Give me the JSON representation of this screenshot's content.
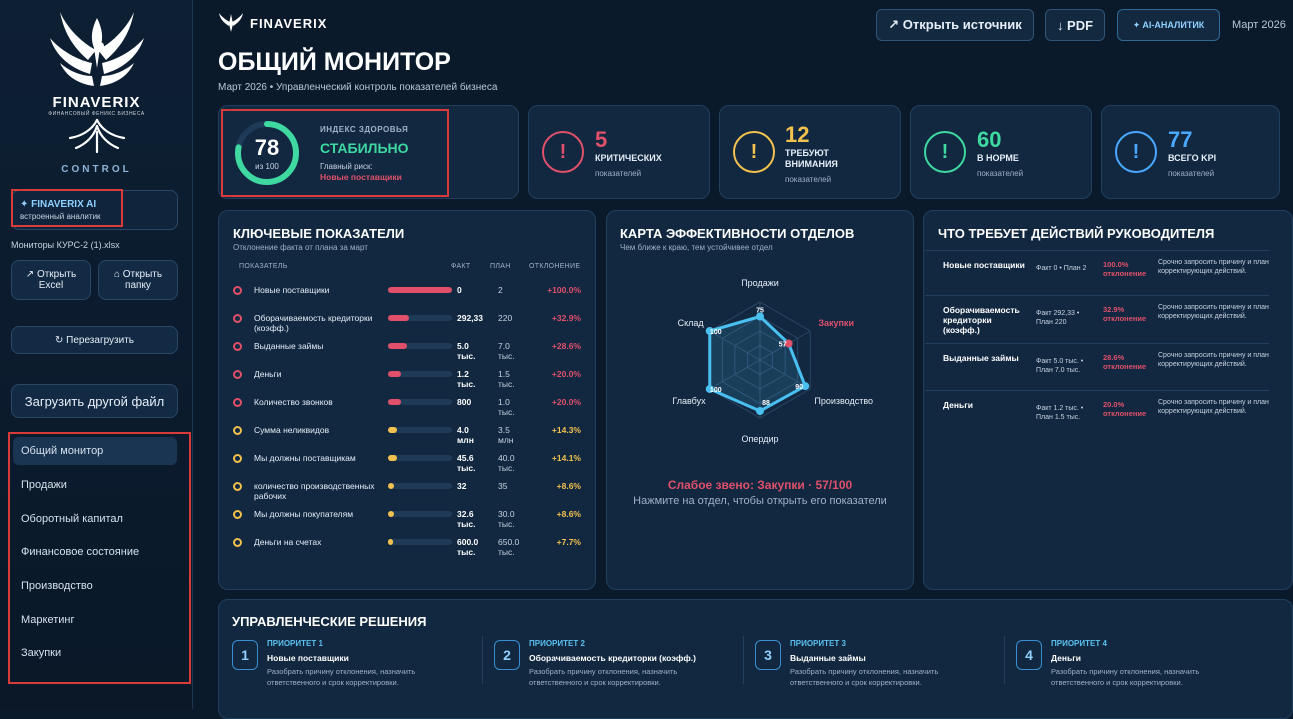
{
  "colors": {
    "critical": "#e0506a",
    "warning": "#f2c14e",
    "ok": "#3ed8a0",
    "info": "#4aa8ff",
    "accent": "#5cc0f0",
    "highlight": "#d93a3a"
  },
  "sidebar": {
    "logo_icon": "phoenix-icon",
    "brand": "FINAVERIX",
    "brand_tagline": "ФИНАНСОВЫЙ ФЕНИКС БИЗНЕСА",
    "control": "CONTROL",
    "ai": {
      "title": "✦ FINAVERIX AI",
      "subtitle": "встроенный аналитик"
    },
    "file_name": "Мониторы КУРС-2 (1).xlsx",
    "open_excel": "↗ Открыть Excel",
    "open_folder": "⌂ Открыть папку",
    "reload": "↻ Перезагрузить",
    "upload": "Загрузить другой файл",
    "nav": [
      "Общий монитор",
      "Продажи",
      "Оборотный капитал",
      "Финансовое состояние",
      "Производство",
      "Маркетинг",
      "Закупки"
    ]
  },
  "topbar": {
    "brand": "FINAVERIX",
    "open_source": "↗ Открыть источник",
    "pdf": "↓ PDF",
    "ai_analyst": "✦ AI-АНАЛИТИК",
    "date": "Март 2026"
  },
  "header": {
    "title": "ОБЩИЙ МОНИТОР",
    "subtitle": "Март 2026 • Управленческий контроль показателей бизнеса"
  },
  "health": {
    "score": "78",
    "of": "из 100",
    "score_fraction": 0.78,
    "label": "ИНДЕКС ЗДОРОВЬЯ",
    "status": "СТАБИЛЬНО",
    "risk_label": "Главный риск:",
    "risk_value": "Новые поставщики"
  },
  "kpis": [
    {
      "num": "5",
      "label": "КРИТИЧЕСКИХ",
      "sub": "показателей",
      "color": "#e0506a"
    },
    {
      "num": "12",
      "label": "ТРЕБУЮТ ВНИМАНИЯ",
      "sub": "показателей",
      "color": "#f2c14e"
    },
    {
      "num": "60",
      "label": "В НОРМЕ",
      "sub": "показателей",
      "color": "#3ed8a0"
    },
    {
      "num": "77",
      "label": "ВСЕГО KPI",
      "sub": "показателей",
      "color": "#4aa8ff"
    }
  ],
  "key_metrics": {
    "title": "КЛЮЧЕВЫЕ ПОКАЗАТЕЛИ",
    "subtitle": "Отклонение факта от плана за март",
    "headers": {
      "metric": "ПОКАЗАТЕЛЬ",
      "fact": "ФАКТ",
      "plan": "ПЛАН",
      "deviation": "ОТКЛОНЕНИЕ"
    },
    "rows": [
      {
        "name": "Новые поставщики",
        "fact": "0",
        "plan": "2",
        "dev": "+100.0%",
        "level": 1.0,
        "status": "critical"
      },
      {
        "name": "Оборачиваемость кредиторки (коэфф.)",
        "fact": "292,33",
        "plan": "220",
        "dev": "+32.9%",
        "level": 0.33,
        "status": "critical"
      },
      {
        "name": "Выданные займы",
        "fact": "5.0 тыс.",
        "plan": "7.0 тыс.",
        "dev": "+28.6%",
        "level": 0.29,
        "status": "critical"
      },
      {
        "name": "Деньги",
        "fact": "1.2 тыс.",
        "plan": "1.5 тыс.",
        "dev": "+20.0%",
        "level": 0.2,
        "status": "critical"
      },
      {
        "name": "Количество звонков",
        "fact": "800",
        "plan": "1.0 тыс.",
        "dev": "+20.0%",
        "level": 0.2,
        "status": "critical"
      },
      {
        "name": "Сумма неликвидов",
        "fact": "4.0 млн",
        "plan": "3.5 млн",
        "dev": "+14.3%",
        "level": 0.14,
        "status": "warning"
      },
      {
        "name": "Мы должны поставщикам",
        "fact": "45.6 тыс.",
        "plan": "40.0 тыс.",
        "dev": "+14.1%",
        "level": 0.14,
        "status": "warning"
      },
      {
        "name": "количество производственных рабочих",
        "fact": "32",
        "plan": "35",
        "dev": "+8.6%",
        "level": 0.09,
        "status": "warning"
      },
      {
        "name": "Мы должны покупателям",
        "fact": "32.6 тыс.",
        "plan": "30.0 тыс.",
        "dev": "+8.6%",
        "level": 0.09,
        "status": "warning"
      },
      {
        "name": "Деньги на счетах",
        "fact": "600.0 тыс.",
        "plan": "650.0 тыс.",
        "dev": "+7.7%",
        "level": 0.08,
        "status": "warning"
      }
    ]
  },
  "radar": {
    "title": "КАРТА ЭФФЕКТИВНОСТИ ОТДЕЛОВ",
    "subtitle": "Чем ближе к краю, тем устойчивее отдел",
    "max": 100,
    "axes": [
      {
        "name": "Продажи",
        "value": 75
      },
      {
        "name": "Закупки",
        "value": 57
      },
      {
        "name": "Производство",
        "value": 90
      },
      {
        "name": "Опердир",
        "value": 88
      },
      {
        "name": "Главбух",
        "value": 100
      },
      {
        "name": "Склад",
        "value": 100
      }
    ],
    "weak_link": "Слабое звено: Закупки · 57/100",
    "hint": "Нажмите на отдел, чтобы открыть его показатели"
  },
  "actions": {
    "title": "ЧТО ТРЕБУЕТ ДЕЙСТВИЙ РУКОВОДИТЕЛЯ",
    "pct_label": "отклонение",
    "items": [
      {
        "name": "Новые поставщики",
        "fp": "Факт 0 • План 2",
        "pct": "100.0%",
        "text": "Срочно запросить причину и план корректирующих действий."
      },
      {
        "name": "Оборачиваемость кредиторки (коэфф.)",
        "fp": "Факт 292,33 • План 220",
        "pct": "32.9%",
        "text": "Срочно запросить причину и план корректирующих действий."
      },
      {
        "name": "Выданные займы",
        "fp": "Факт 5.0 тыс. • План 7.0 тыс.",
        "pct": "28.6%",
        "text": "Срочно запросить причину и план корректирующих действий."
      },
      {
        "name": "Деньги",
        "fp": "Факт 1.2 тыс. • План 1.5 тыс.",
        "pct": "20.0%",
        "text": "Срочно запросить причину и план корректирующих действий."
      }
    ]
  },
  "decisions": {
    "title": "УПРАВЛЕНЧЕСКИЕ РЕШЕНИЯ",
    "items": [
      {
        "num": "1",
        "priority": "ПРИОРИТЕТ 1",
        "name": "Новые поставщики",
        "text": "Разобрать причину отклонения, назначить ответственного и срок корректировки."
      },
      {
        "num": "2",
        "priority": "ПРИОРИТЕТ 2",
        "name": "Оборачиваемость кредиторки (коэфф.)",
        "text": "Разобрать причину отклонения, назначить ответственного и срок корректировки."
      },
      {
        "num": "3",
        "priority": "ПРИОРИТЕТ 3",
        "name": "Выданные займы",
        "text": "Разобрать причину отклонения, назначить ответственного и срок корректировки."
      },
      {
        "num": "4",
        "priority": "ПРИОРИТЕТ 4",
        "name": "Деньги",
        "text": "Разобрать причину отклонения, назначить ответственного и срок корректировки."
      }
    ]
  }
}
